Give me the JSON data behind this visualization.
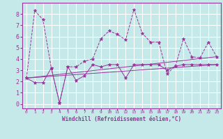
{
  "xlabel": "Windchill (Refroidissement éolien,°C)",
  "x_ticks": [
    0,
    1,
    2,
    3,
    4,
    5,
    6,
    7,
    8,
    9,
    10,
    11,
    12,
    13,
    14,
    15,
    16,
    17,
    18,
    19,
    20,
    21,
    22,
    23
  ],
  "y_ticks": [
    0,
    1,
    2,
    3,
    4,
    5,
    6,
    7,
    8
  ],
  "ylim": [
    -0.4,
    9.0
  ],
  "xlim": [
    -0.5,
    23.5
  ],
  "background_color": "#c5e8e8",
  "grid_color": "#ffffff",
  "line_color": "#993399",
  "series_top": {
    "x": [
      0,
      1,
      2,
      3,
      4,
      5,
      6,
      7,
      8,
      9,
      10,
      11,
      12,
      13,
      14,
      15,
      16,
      17,
      18,
      19,
      20,
      21,
      22,
      23
    ],
    "y": [
      2.3,
      8.3,
      7.5,
      3.2,
      0.1,
      3.3,
      3.3,
      3.8,
      4.0,
      5.8,
      6.5,
      6.2,
      5.7,
      8.4,
      6.3,
      5.5,
      5.5,
      2.7,
      3.35,
      5.8,
      4.2,
      4.1,
      5.5,
      4.2
    ]
  },
  "series_bot": {
    "x": [
      0,
      1,
      2,
      3,
      4,
      5,
      6,
      7,
      8,
      9,
      10,
      11,
      12,
      13,
      14,
      15,
      16,
      17,
      18,
      19,
      20,
      21,
      22,
      23
    ],
    "y": [
      2.3,
      1.9,
      1.9,
      3.2,
      0.1,
      3.3,
      2.1,
      2.5,
      3.5,
      3.3,
      3.5,
      3.5,
      2.3,
      3.5,
      3.5,
      3.5,
      3.5,
      3.0,
      3.35,
      3.5,
      3.5,
      3.5,
      3.5,
      3.5
    ]
  },
  "trend1": {
    "x": [
      0,
      23
    ],
    "y": [
      2.3,
      4.2
    ]
  },
  "trend2": {
    "x": [
      0,
      23
    ],
    "y": [
      2.3,
      3.5
    ]
  }
}
